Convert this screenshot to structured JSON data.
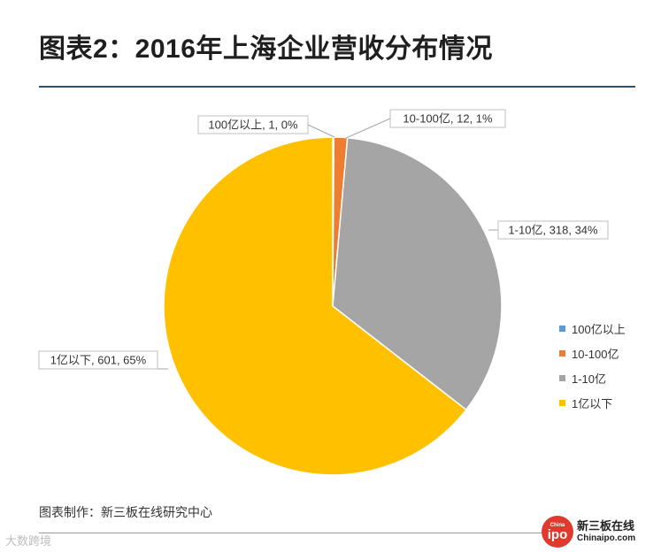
{
  "title": "图表2：2016年上海企业营收分布情况",
  "chart_data": {
    "type": "pie",
    "title": "2016年上海企业营收分布情况",
    "categories": [
      "100亿以上",
      "10-100亿",
      "1-10亿",
      "1亿以下"
    ],
    "values": [
      1,
      12,
      318,
      601
    ],
    "percents": [
      "0%",
      "1%",
      "34%",
      "65%"
    ],
    "colors": [
      "#5b9bd5",
      "#ed7d31",
      "#a5a5a5",
      "#ffc000"
    ],
    "data_labels": [
      "100亿以上, 1, 0%",
      "10-100亿, 12, 1%",
      "1-10亿, 318, 34%",
      "1亿以下, 601, 65%"
    ],
    "legend": [
      "100亿以上",
      "10-100亿",
      "1-10亿",
      "1亿以下"
    ],
    "legend_position": "right"
  },
  "footer": {
    "source": "图表制作：新三板在线研究中心"
  },
  "brand": {
    "logo_small": "China",
    "logo_big": "ipo",
    "name": "新三板在线",
    "url": "Chinaipo.com"
  },
  "credit": "大数跨境"
}
